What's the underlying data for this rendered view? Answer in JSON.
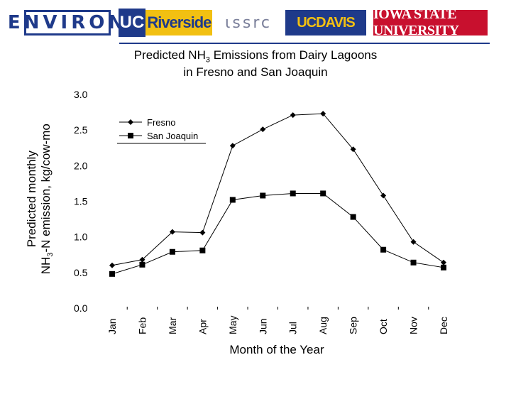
{
  "logos": {
    "environ": "ENVIRON",
    "ucr_uc": "UC",
    "ucr_name": "Riverside",
    "issrc": "ιssrc",
    "ucdavis": "UCDAVIS",
    "isu": "IOWA STATE UNIVERSITY"
  },
  "colors": {
    "brand_blue": "#1f3a8a",
    "brand_gold": "#f2c012",
    "isu_red": "#c8102e"
  },
  "chart_data": {
    "type": "line",
    "title_line1_pre": "Predicted NH",
    "title_line1_sub": "3",
    "title_line1_post": " Emissions from Dairy Lagoons",
    "title_line2": "in Fresno and San Joaquin",
    "ylabel_line1": "Predicted monthly",
    "ylabel_line2_pre": "NH",
    "ylabel_line2_sub": "3",
    "ylabel_line2_post": "-N emission, kg/cow-mo",
    "xlabel": "Month of the Year",
    "categories": [
      "Jan",
      "Feb",
      "Mar",
      "Apr",
      "May",
      "Jun",
      "Jul",
      "Aug",
      "Sep",
      "Oct",
      "Nov",
      "Dec"
    ],
    "ylim": [
      0,
      3
    ],
    "yticks": [
      "0.0",
      "0.5",
      "1.0",
      "1.5",
      "2.0",
      "2.5",
      "3.0"
    ],
    "legend_position": "top-left",
    "series": [
      {
        "name": "Fresno",
        "marker": "diamond",
        "values": [
          0.6,
          0.68,
          1.07,
          1.06,
          2.28,
          2.51,
          2.71,
          2.73,
          2.23,
          1.58,
          0.93,
          0.64
        ]
      },
      {
        "name": "San Joaquin",
        "marker": "square",
        "values": [
          0.48,
          0.61,
          0.79,
          0.81,
          1.52,
          1.58,
          1.61,
          1.61,
          1.28,
          0.82,
          0.64,
          0.57
        ]
      }
    ]
  }
}
